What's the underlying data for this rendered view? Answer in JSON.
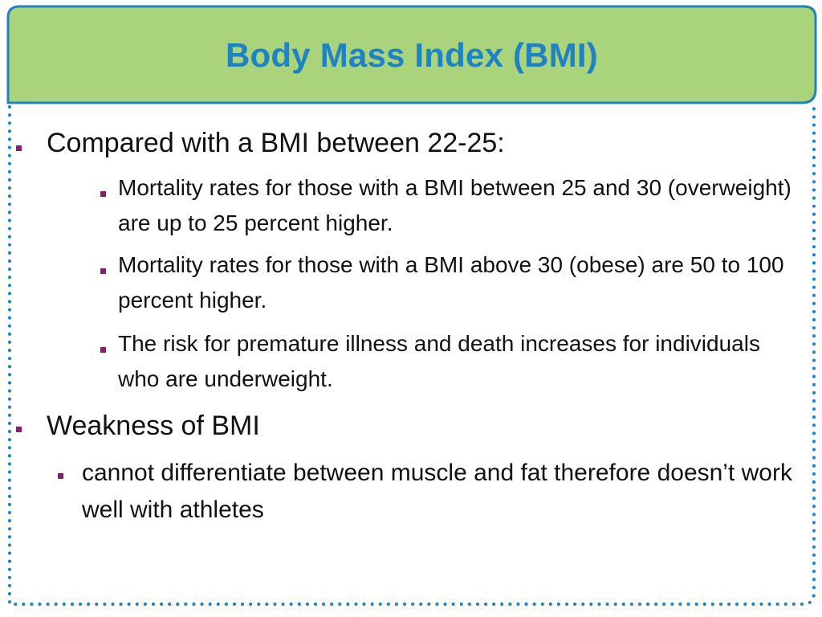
{
  "slide": {
    "title": "Body Mass Index (BMI)",
    "bullets": [
      {
        "text": "Compared with a BMI between 22-25:",
        "children": [
          {
            "text": "Mortality rates for those with a BMI between 25 and 30 (overweight) are up to 25 percent higher."
          },
          {
            "text": "Mortality rates for those with a BMI above 30 (obese) are 50 to 100 percent higher."
          },
          {
            "text": "The risk for premature illness and death increases for individuals who are underweight."
          }
        ]
      },
      {
        "text": "Weakness of BMI",
        "children": [
          {
            "text": "cannot differentiate between muscle and fat therefore doesn’t work well with athletes"
          }
        ]
      }
    ]
  },
  "colors": {
    "title_bg": "#a9d47b",
    "title_border": "#1f83c3",
    "title_text": "#1f83c3",
    "frame_dots": "#1f83c3",
    "bullet_marker": "#8a1d6b"
  }
}
